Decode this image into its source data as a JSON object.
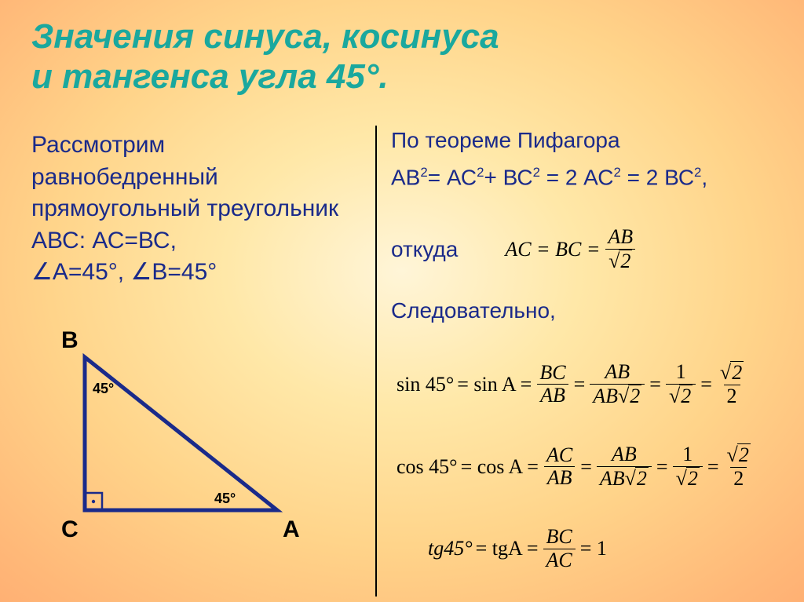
{
  "title_line1": "Значения синуса, косинуса",
  "title_line2": "и тангенса угла 45°.",
  "left": {
    "l1": "Рассмотрим",
    "l2": "равнобедренный",
    "l3": "прямоугольный треугольник",
    "l4": "АВС: АС=ВС,",
    "l5": "∠А=45°, ∠В=45°"
  },
  "triangle": {
    "B": "В",
    "C": "С",
    "A": "А",
    "ang_top": "45°",
    "ang_right": "45°",
    "line_color": "#1a2a8a",
    "line_width": 5
  },
  "right": {
    "r1": "По теореме Пифагора",
    "r2_html": "АВ<sup>2</sup>= АС<sup>2</sup>+ ВС<sup>2</sup> = 2 АС<sup>2</sup> = 2 ВС<sup>2</sup>,",
    "r3": "откуда",
    "r4": "Следовательно,",
    "f1": {
      "eq": "AC = BC =",
      "num": "AB",
      "den_rad": "2"
    },
    "sin": {
      "label": "sin 45°",
      "label2": "= sin A =",
      "f1n": "BC",
      "f1d": "AB",
      "f2n": "AB",
      "f2d_a": "AB",
      "f2d_r": "2",
      "f3n": "1",
      "f3d_r": "2",
      "f4n_r": "2",
      "f4d": "2"
    },
    "cos": {
      "label": "cos 45°",
      "label2": "= cos A =",
      "f1n": "AC",
      "f1d": "AB",
      "f2n": "AB",
      "f2d_a": "AB",
      "f2d_r": "2",
      "f3n": "1",
      "f3d_r": "2",
      "f4n_r": "2",
      "f4d": "2"
    },
    "tg": {
      "label": "tg45°",
      "label2": "= tgA =",
      "f1n": "BC",
      "f1d": "AC",
      "res": "= 1"
    }
  },
  "colors": {
    "title": "#1aa89e",
    "text": "#1a2a8a",
    "formula": "#000000"
  }
}
